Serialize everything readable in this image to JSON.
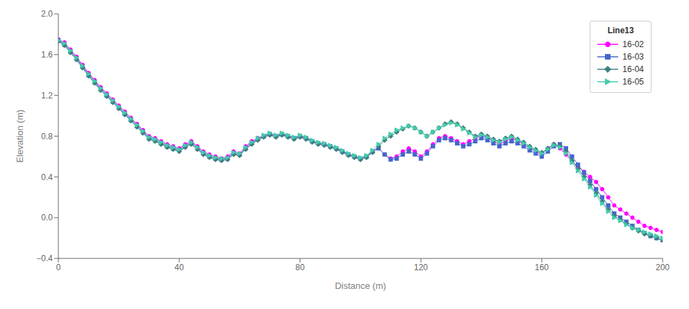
{
  "chart_data": {
    "type": "line",
    "xlabel": "Distance (m)",
    "ylabel": "Elevation (m)",
    "legend_title": "Line13",
    "legend": "upper right",
    "grid": false,
    "xlim": [
      0,
      200
    ],
    "ylim": [
      -0.4,
      2
    ],
    "xticks": [
      0,
      40,
      80,
      120,
      160,
      200
    ],
    "yticks": [
      {
        "value": -0.4,
        "label": "−0.4"
      },
      {
        "value": 0,
        "label": "0.0"
      },
      0.4,
      0.8,
      1.2,
      1.6,
      {
        "value": 2,
        "label": "2.0"
      }
    ],
    "x": [
      0,
      2,
      4,
      6,
      8,
      10,
      12,
      14,
      16,
      18,
      20,
      22,
      24,
      26,
      28,
      30,
      32,
      34,
      36,
      38,
      40,
      42,
      44,
      46,
      48,
      50,
      52,
      54,
      56,
      58,
      60,
      62,
      64,
      66,
      68,
      70,
      72,
      74,
      76,
      78,
      80,
      82,
      84,
      86,
      88,
      90,
      92,
      94,
      96,
      98,
      100,
      102,
      104,
      106,
      108,
      110,
      112,
      114,
      116,
      118,
      120,
      122,
      124,
      126,
      128,
      130,
      132,
      134,
      136,
      138,
      140,
      142,
      144,
      146,
      148,
      150,
      152,
      154,
      156,
      158,
      160,
      162,
      164,
      166,
      168,
      170,
      172,
      174,
      176,
      178,
      180,
      182,
      184,
      186,
      188,
      190,
      192,
      194,
      196,
      198,
      200
    ],
    "series": [
      {
        "name": "16-02",
        "color": "#FF00FF",
        "marker": "circle",
        "values": [
          1.75,
          1.72,
          1.65,
          1.58,
          1.5,
          1.42,
          1.35,
          1.28,
          1.22,
          1.16,
          1.1,
          1.04,
          0.98,
          0.92,
          0.86,
          0.8,
          0.78,
          0.75,
          0.72,
          0.7,
          0.68,
          0.72,
          0.75,
          0.7,
          0.65,
          0.62,
          0.6,
          0.58,
          0.6,
          0.65,
          0.63,
          0.7,
          0.75,
          0.78,
          0.8,
          0.82,
          0.8,
          0.82,
          0.8,
          0.78,
          0.8,
          0.78,
          0.75,
          0.73,
          0.72,
          0.7,
          0.68,
          0.65,
          0.62,
          0.6,
          0.58,
          0.6,
          0.65,
          0.68,
          0.62,
          0.58,
          0.6,
          0.65,
          0.68,
          0.65,
          0.6,
          0.65,
          0.72,
          0.78,
          0.8,
          0.78,
          0.75,
          0.72,
          0.75,
          0.78,
          0.8,
          0.78,
          0.75,
          0.72,
          0.75,
          0.78,
          0.75,
          0.72,
          0.68,
          0.65,
          0.62,
          0.68,
          0.72,
          0.68,
          0.62,
          0.55,
          0.5,
          0.45,
          0.4,
          0.35,
          0.28,
          0.2,
          0.12,
          0.08,
          0.04,
          0.0,
          -0.04,
          -0.08,
          -0.1,
          -0.12,
          -0.14
        ]
      },
      {
        "name": "16-03",
        "color": "#4466CC",
        "marker": "square",
        "values": [
          1.74,
          1.7,
          1.63,
          1.56,
          1.48,
          1.4,
          1.33,
          1.26,
          1.2,
          1.14,
          1.08,
          1.02,
          0.96,
          0.9,
          0.84,
          0.78,
          0.76,
          0.73,
          0.7,
          0.68,
          0.66,
          0.7,
          0.73,
          0.68,
          0.63,
          0.6,
          0.58,
          0.57,
          0.58,
          0.63,
          0.62,
          0.68,
          0.73,
          0.77,
          0.8,
          0.82,
          0.8,
          0.82,
          0.8,
          0.78,
          0.8,
          0.78,
          0.75,
          0.73,
          0.72,
          0.7,
          0.68,
          0.65,
          0.62,
          0.6,
          0.58,
          0.6,
          0.65,
          0.68,
          0.62,
          0.57,
          0.58,
          0.62,
          0.65,
          0.62,
          0.58,
          0.63,
          0.7,
          0.76,
          0.78,
          0.76,
          0.73,
          0.7,
          0.72,
          0.75,
          0.78,
          0.76,
          0.73,
          0.7,
          0.73,
          0.75,
          0.73,
          0.7,
          0.66,
          0.63,
          0.6,
          0.65,
          0.7,
          0.72,
          0.68,
          0.6,
          0.52,
          0.44,
          0.36,
          0.28,
          0.2,
          0.12,
          0.04,
          0.0,
          -0.04,
          -0.08,
          -0.12,
          -0.15,
          -0.18,
          -0.2,
          -0.22
        ]
      },
      {
        "name": "16-04",
        "color": "#3d8080",
        "marker": "diamond",
        "values": [
          1.73,
          1.69,
          1.62,
          1.55,
          1.47,
          1.39,
          1.32,
          1.25,
          1.19,
          1.13,
          1.07,
          1.01,
          0.95,
          0.89,
          0.83,
          0.77,
          0.75,
          0.72,
          0.69,
          0.67,
          0.65,
          0.69,
          0.72,
          0.67,
          0.62,
          0.59,
          0.57,
          0.56,
          0.57,
          0.62,
          0.61,
          0.67,
          0.72,
          0.76,
          0.79,
          0.81,
          0.79,
          0.81,
          0.79,
          0.77,
          0.79,
          0.77,
          0.74,
          0.72,
          0.71,
          0.69,
          0.67,
          0.64,
          0.61,
          0.59,
          0.57,
          0.59,
          0.64,
          0.7,
          0.76,
          0.8,
          0.84,
          0.87,
          0.9,
          0.88,
          0.84,
          0.8,
          0.84,
          0.88,
          0.92,
          0.94,
          0.92,
          0.88,
          0.84,
          0.8,
          0.82,
          0.8,
          0.77,
          0.75,
          0.78,
          0.8,
          0.77,
          0.74,
          0.7,
          0.67,
          0.64,
          0.68,
          0.72,
          0.7,
          0.65,
          0.56,
          0.48,
          0.4,
          0.32,
          0.24,
          0.16,
          0.08,
          0.02,
          -0.02,
          -0.06,
          -0.1,
          -0.13,
          -0.16,
          -0.18,
          -0.2,
          -0.22
        ]
      },
      {
        "name": "16-05",
        "color": "#44CCAA",
        "marker": "triangle-right",
        "values": [
          1.74,
          1.71,
          1.64,
          1.57,
          1.49,
          1.41,
          1.34,
          1.27,
          1.21,
          1.15,
          1.09,
          1.03,
          0.97,
          0.91,
          0.85,
          0.79,
          0.77,
          0.74,
          0.71,
          0.69,
          0.67,
          0.71,
          0.74,
          0.69,
          0.64,
          0.61,
          0.59,
          0.58,
          0.59,
          0.64,
          0.63,
          0.69,
          0.74,
          0.78,
          0.81,
          0.83,
          0.81,
          0.83,
          0.81,
          0.79,
          0.81,
          0.79,
          0.76,
          0.74,
          0.73,
          0.71,
          0.69,
          0.66,
          0.63,
          0.61,
          0.59,
          0.61,
          0.66,
          0.72,
          0.78,
          0.82,
          0.86,
          0.88,
          0.9,
          0.88,
          0.84,
          0.8,
          0.84,
          0.88,
          0.91,
          0.93,
          0.91,
          0.87,
          0.83,
          0.79,
          0.81,
          0.79,
          0.76,
          0.74,
          0.77,
          0.79,
          0.76,
          0.73,
          0.69,
          0.66,
          0.63,
          0.67,
          0.71,
          0.69,
          0.63,
          0.54,
          0.46,
          0.38,
          0.3,
          0.22,
          0.14,
          0.06,
          0.0,
          -0.03,
          -0.07,
          -0.1,
          -0.12,
          -0.14,
          -0.16,
          -0.18,
          -0.2
        ]
      }
    ]
  }
}
